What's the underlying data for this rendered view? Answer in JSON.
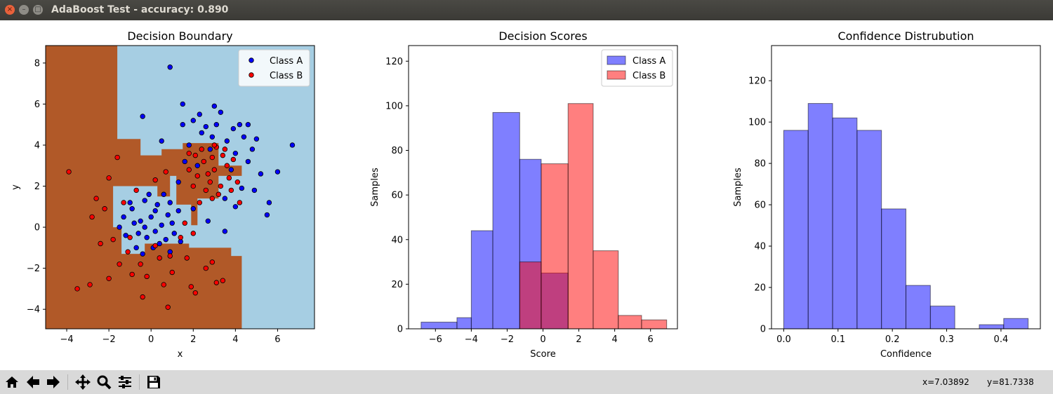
{
  "window": {
    "title": "AdaBoost Test - accuracy: 0.890"
  },
  "colors": {
    "class_a": "#0000ff",
    "class_b": "#ff0000",
    "region_a": "#a6cee3",
    "region_b": "#b15928"
  },
  "toolbar": {
    "buttons": [
      "home-icon",
      "back-icon",
      "forward-icon",
      "pan-icon",
      "zoom-icon",
      "configure-subplots-icon",
      "save-icon"
    ],
    "coords": {
      "x": "x=7.03892",
      "y": "y=81.7338"
    }
  },
  "chart_data": [
    {
      "type": "scatter",
      "title": "Decision Boundary",
      "xlabel": "x",
      "ylabel": "y",
      "xlim": [
        -5,
        7.75
      ],
      "ylim": [
        -4.95,
        8.85
      ],
      "xticks": [
        -4,
        -2,
        0,
        2,
        4,
        6
      ],
      "yticks": [
        -4,
        -2,
        0,
        2,
        4,
        6,
        8
      ],
      "legend": {
        "position": "top-right",
        "entries": [
          "Class A",
          "Class B"
        ]
      },
      "grid": false,
      "decision_regions": {
        "class_b": [
          [
            -5,
            8.85
          ],
          [
            -1.6,
            8.85
          ],
          [
            -1.6,
            4.3
          ],
          [
            -0.5,
            4.3
          ],
          [
            -0.5,
            3.5
          ],
          [
            0.5,
            3.5
          ],
          [
            0.5,
            3.8
          ],
          [
            1.5,
            3.8
          ],
          [
            1.5,
            4.1
          ],
          [
            3.2,
            4.1
          ],
          [
            3.2,
            3.0
          ],
          [
            4.3,
            3.0
          ],
          [
            4.3,
            2.5
          ],
          [
            3.2,
            2.5
          ],
          [
            3.2,
            1.4
          ],
          [
            2.2,
            1.4
          ],
          [
            2.2,
            0.1
          ],
          [
            1.9,
            0.1
          ],
          [
            1.9,
            1.1
          ],
          [
            1.2,
            1.1
          ],
          [
            1.2,
            2.5
          ],
          [
            0.9,
            2.5
          ],
          [
            0.9,
            1.5
          ],
          [
            0.3,
            1.5
          ],
          [
            0.3,
            2.0
          ],
          [
            -1.8,
            2.0
          ],
          [
            -1.8,
            0.0
          ],
          [
            -1.4,
            0.0
          ],
          [
            -1.4,
            -1.3
          ],
          [
            -0.3,
            -1.3
          ],
          [
            -0.3,
            -0.8
          ],
          [
            1.8,
            -0.8
          ],
          [
            1.8,
            -1.0
          ],
          [
            3.8,
            -1.0
          ],
          [
            3.8,
            -1.4
          ],
          [
            4.3,
            -1.4
          ],
          [
            4.3,
            -4.95
          ],
          [
            -5,
            -4.95
          ]
        ]
      },
      "series": [
        {
          "name": "Class A",
          "points": [
            [
              -0.5,
              0.3
            ],
            [
              0.2,
              -0.2
            ],
            [
              -0.9,
              0.9
            ],
            [
              0.8,
              0.6
            ],
            [
              0.4,
              -0.8
            ],
            [
              -0.3,
              1.3
            ],
            [
              1.1,
              -0.3
            ],
            [
              -1.2,
              -0.4
            ],
            [
              0.6,
              1.6
            ],
            [
              -0.7,
              -1.0
            ],
            [
              0.0,
              0.5
            ],
            [
              0.9,
              -1.2
            ],
            [
              -1.3,
              0.5
            ],
            [
              1.3,
              0.8
            ],
            [
              -0.2,
              -0.5
            ],
            [
              0.5,
              0.1
            ],
            [
              -0.8,
              0.2
            ],
            [
              0.3,
              1.1
            ],
            [
              -0.4,
              -1.3
            ],
            [
              1.0,
              0.2
            ],
            [
              -1.0,
              1.2
            ],
            [
              0.7,
              -0.6
            ],
            [
              -0.1,
              1.6
            ],
            [
              0.1,
              -1.0
            ],
            [
              -0.6,
              -0.3
            ],
            [
              1.4,
              -0.7
            ],
            [
              -1.5,
              0.0
            ],
            [
              0.9,
              1.2
            ],
            [
              0.2,
              0.8
            ],
            [
              -0.3,
              0.0
            ],
            [
              2.4,
              4.6
            ],
            [
              3.1,
              5.0
            ],
            [
              2.8,
              3.8
            ],
            [
              3.6,
              4.2
            ],
            [
              2.0,
              5.2
            ],
            [
              4.0,
              3.6
            ],
            [
              3.3,
              5.6
            ],
            [
              2.6,
              4.9
            ],
            [
              4.4,
              4.4
            ],
            [
              1.8,
              4.0
            ],
            [
              3.8,
              2.8
            ],
            [
              4.6,
              3.2
            ],
            [
              2.2,
              3.0
            ],
            [
              5.2,
              2.6
            ],
            [
              4.9,
              1.8
            ],
            [
              3.0,
              5.9
            ],
            [
              1.5,
              5.0
            ],
            [
              4.2,
              5.0
            ],
            [
              5.6,
              1.2
            ],
            [
              4.8,
              3.8
            ],
            [
              5.0,
              4.3
            ],
            [
              1.6,
              3.2
            ],
            [
              3.5,
              1.4
            ],
            [
              4.3,
              1.9
            ],
            [
              2.9,
              4.4
            ],
            [
              0.5,
              4.2
            ],
            [
              6.0,
              2.7
            ],
            [
              6.7,
              4.0
            ],
            [
              0.9,
              7.8
            ],
            [
              -0.4,
              5.4
            ],
            [
              1.5,
              6.0
            ],
            [
              5.5,
              0.6
            ],
            [
              4.0,
              1.0
            ],
            [
              2.7,
              0.3
            ],
            [
              3.5,
              -0.2
            ],
            [
              4.6,
              5.0
            ],
            [
              2.3,
              5.5
            ],
            [
              3.9,
              4.8
            ],
            [
              1.3,
              2.2
            ],
            [
              2.0,
              0.9
            ]
          ]
        },
        {
          "name": "Class B",
          "points": [
            [
              2.5,
              3.2
            ],
            [
              3.0,
              2.8
            ],
            [
              2.8,
              2.2
            ],
            [
              3.4,
              3.5
            ],
            [
              2.2,
              2.5
            ],
            [
              3.7,
              2.4
            ],
            [
              3.1,
              3.9
            ],
            [
              2.6,
              1.8
            ],
            [
              3.3,
              2.0
            ],
            [
              2.9,
              3.4
            ],
            [
              2.4,
              3.8
            ],
            [
              3.6,
              3.0
            ],
            [
              2.0,
              2.0
            ],
            [
              3.9,
              3.3
            ],
            [
              2.7,
              2.6
            ],
            [
              3.2,
              1.6
            ],
            [
              2.3,
              1.2
            ],
            [
              4.1,
              2.2
            ],
            [
              3.5,
              3.8
            ],
            [
              2.9,
              1.4
            ],
            [
              1.8,
              2.8
            ],
            [
              3.8,
              1.8
            ],
            [
              2.1,
              3.5
            ],
            [
              3.0,
              4.0
            ],
            [
              -1.6,
              3.4
            ],
            [
              -2.0,
              2.4
            ],
            [
              -1.3,
              1.2
            ],
            [
              -2.6,
              1.4
            ],
            [
              -3.9,
              2.7
            ],
            [
              -2.2,
              0.9
            ],
            [
              -1.8,
              -0.6
            ],
            [
              -2.8,
              0.5
            ],
            [
              -1.1,
              -1.2
            ],
            [
              -0.5,
              -1.8
            ],
            [
              0.4,
              -1.5
            ],
            [
              1.0,
              -2.2
            ],
            [
              -0.2,
              -2.4
            ],
            [
              1.7,
              -1.5
            ],
            [
              2.6,
              -2.0
            ],
            [
              3.1,
              -2.7
            ],
            [
              -0.4,
              -3.4
            ],
            [
              0.8,
              -3.9
            ],
            [
              -3.5,
              -3.0
            ],
            [
              -2.9,
              -2.8
            ],
            [
              -2.0,
              -2.5
            ],
            [
              0.6,
              -2.8
            ],
            [
              1.9,
              -2.9
            ],
            [
              2.9,
              -1.7
            ],
            [
              3.4,
              -2.6
            ],
            [
              2.1,
              -3.2
            ],
            [
              -1.5,
              -1.8
            ],
            [
              0.2,
              -0.9
            ],
            [
              1.4,
              -0.5
            ],
            [
              1.6,
              0.2
            ],
            [
              -0.9,
              -2.3
            ],
            [
              0.2,
              2.3
            ],
            [
              -0.7,
              1.8
            ],
            [
              0.7,
              2.7
            ],
            [
              1.8,
              3.6
            ],
            [
              4.2,
              1.2
            ],
            [
              2.0,
              -0.3
            ],
            [
              -1.0,
              -0.5
            ],
            [
              -2.4,
              -0.8
            ],
            [
              0.9,
              -1.4
            ]
          ]
        }
      ]
    },
    {
      "type": "bar",
      "title": "Decision Scores",
      "xlabel": "Score",
      "ylabel": "Samples",
      "xlim": [
        -7.5,
        7.5
      ],
      "ylim": [
        0,
        127
      ],
      "xticks": [
        -6,
        -4,
        -2,
        0,
        2,
        4,
        6
      ],
      "yticks": [
        0,
        20,
        40,
        60,
        80,
        100,
        120
      ],
      "legend": {
        "position": "top-right",
        "entries": [
          "Class A",
          "Class B"
        ]
      },
      "grid": false,
      "series": [
        {
          "name": "Class A",
          "color": "#0000ff",
          "bins": [
            [
              -6.8,
              -4.8,
              3
            ],
            [
              -4.8,
              -4.0,
              5
            ],
            [
              -4.0,
              -2.8,
              44
            ],
            [
              -2.8,
              -1.3,
              97
            ],
            [
              -1.3,
              -0.1,
              76
            ],
            [
              -0.1,
              1.4,
              25
            ]
          ]
        },
        {
          "name": "Class B",
          "color": "#ff0000",
          "bins": [
            [
              -1.3,
              -0.1,
              30
            ],
            [
              -0.1,
              1.4,
              74
            ],
            [
              1.4,
              2.8,
              101
            ],
            [
              2.8,
              4.2,
              35
            ],
            [
              4.2,
              5.5,
              6
            ],
            [
              5.5,
              6.9,
              4
            ]
          ]
        }
      ]
    },
    {
      "type": "bar",
      "title": "Confidence Distrubution",
      "xlabel": "Confidence",
      "ylabel": "Samples",
      "xlim": [
        -0.0225,
        0.4725
      ],
      "ylim": [
        0,
        137
      ],
      "xticks": [
        0.0,
        0.1,
        0.2,
        0.3,
        0.4
      ],
      "yticks": [
        0,
        20,
        40,
        60,
        80,
        100,
        120
      ],
      "grid": false,
      "series": [
        {
          "color": "#0000ff",
          "bins": [
            [
              0.0,
              0.045,
              96
            ],
            [
              0.045,
              0.09,
              109
            ],
            [
              0.09,
              0.135,
              102
            ],
            [
              0.135,
              0.18,
              96
            ],
            [
              0.18,
              0.225,
              58
            ],
            [
              0.225,
              0.27,
              21
            ],
            [
              0.27,
              0.315,
              11
            ],
            [
              0.315,
              0.36,
              0
            ],
            [
              0.36,
              0.405,
              2
            ],
            [
              0.405,
              0.45,
              5
            ]
          ]
        }
      ]
    }
  ]
}
